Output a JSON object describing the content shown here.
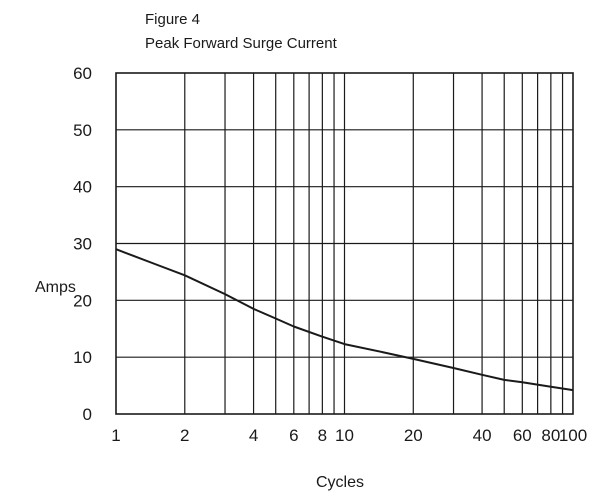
{
  "chart_data": {
    "type": "line",
    "title": "Figure 4",
    "subtitle": "Peak Forward Surge Current",
    "xlabel": "Cycles",
    "ylabel": "Amps",
    "xscale": "log",
    "xlim": [
      1,
      100
    ],
    "ylim": [
      0,
      60
    ],
    "grid": true,
    "x_ticks": [
      1,
      2,
      4,
      6,
      8,
      10,
      20,
      40,
      60,
      80,
      100
    ],
    "x_tick_labels": [
      "1",
      "2",
      "4",
      "6",
      "8",
      "10",
      "20",
      "40",
      "60",
      "80",
      "100"
    ],
    "x_gridlines": [
      2,
      3,
      4,
      5,
      6,
      7,
      8,
      9,
      10,
      20,
      30,
      40,
      50,
      60,
      70,
      80,
      90
    ],
    "y_ticks": [
      0,
      10,
      20,
      30,
      40,
      50,
      60
    ],
    "y_tick_labels": [
      "0",
      "10",
      "20",
      "30",
      "40",
      "50",
      "60"
    ],
    "series": [
      {
        "x": [
          1,
          1.5,
          2,
          3,
          4,
          5,
          6,
          8,
          10,
          15,
          20,
          30,
          40,
          50,
          60,
          80,
          100
        ],
        "y": [
          29.0,
          26.3,
          24.4,
          21.1,
          18.5,
          16.8,
          15.4,
          13.6,
          12.3,
          10.8,
          9.7,
          8.1,
          6.9,
          6.0,
          5.6,
          4.8,
          4.2
        ]
      }
    ]
  }
}
